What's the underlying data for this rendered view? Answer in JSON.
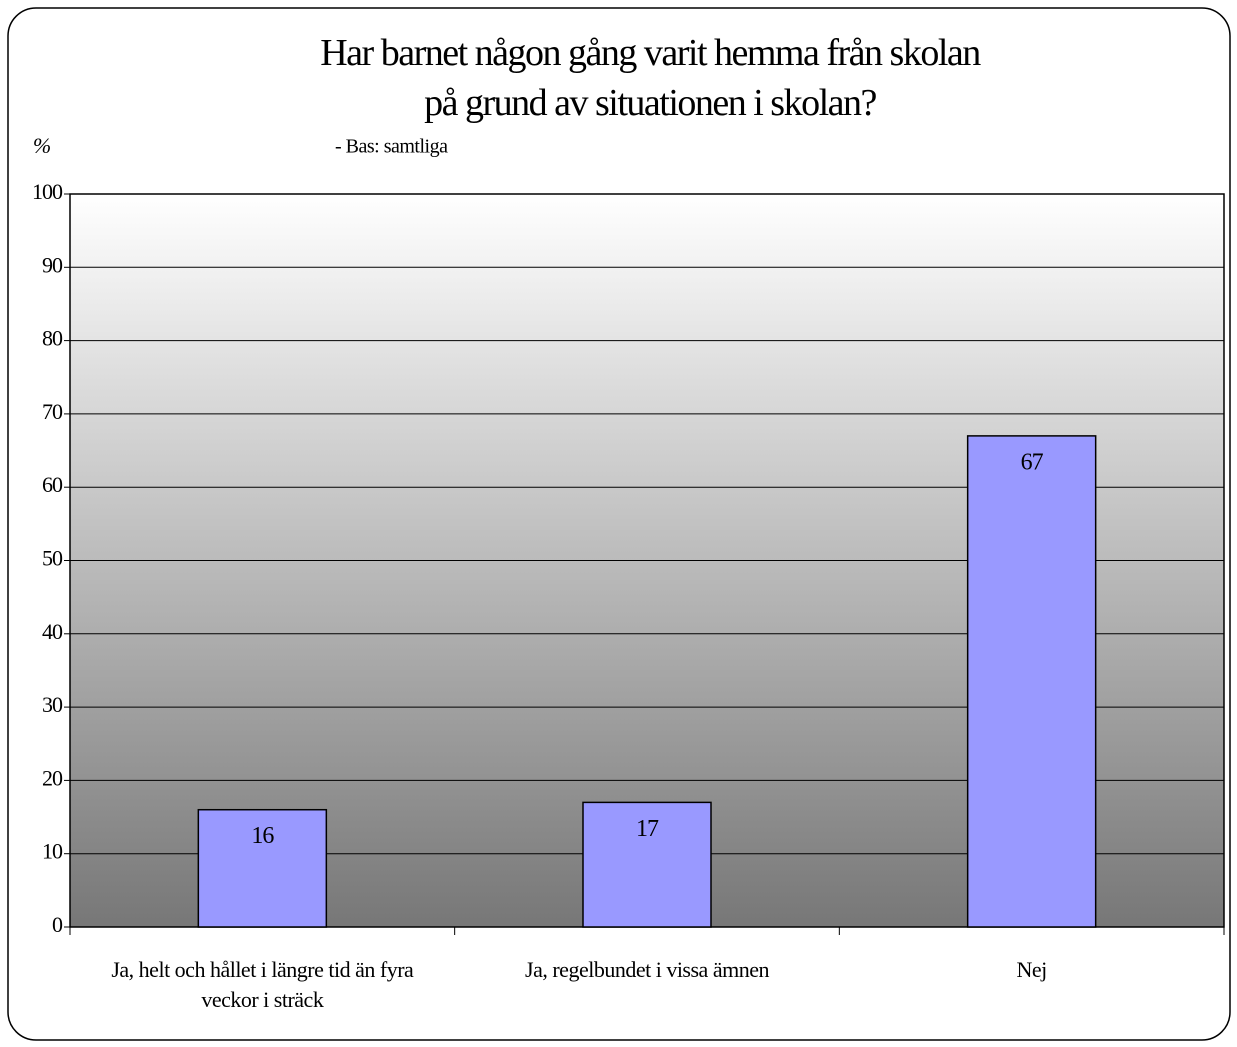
{
  "chart_data": {
    "type": "bar",
    "title": "Har barnet någon gång varit hemma från skolan på grund av situationen i skolan?",
    "subtitle": "- Bas: samtliga",
    "y_label": "%",
    "categories": [
      "Ja, helt och hållet i längre tid än fyra veckor i sträck",
      "Ja, regelbundet i vissa ämnen",
      "Nej"
    ],
    "values": [
      16,
      17,
      67
    ],
    "color": "#9999ff",
    "ylim": [
      0,
      100
    ],
    "yticks": [
      0,
      10,
      20,
      30,
      40,
      50,
      60,
      70,
      80,
      90,
      100
    ],
    "grid": true
  }
}
